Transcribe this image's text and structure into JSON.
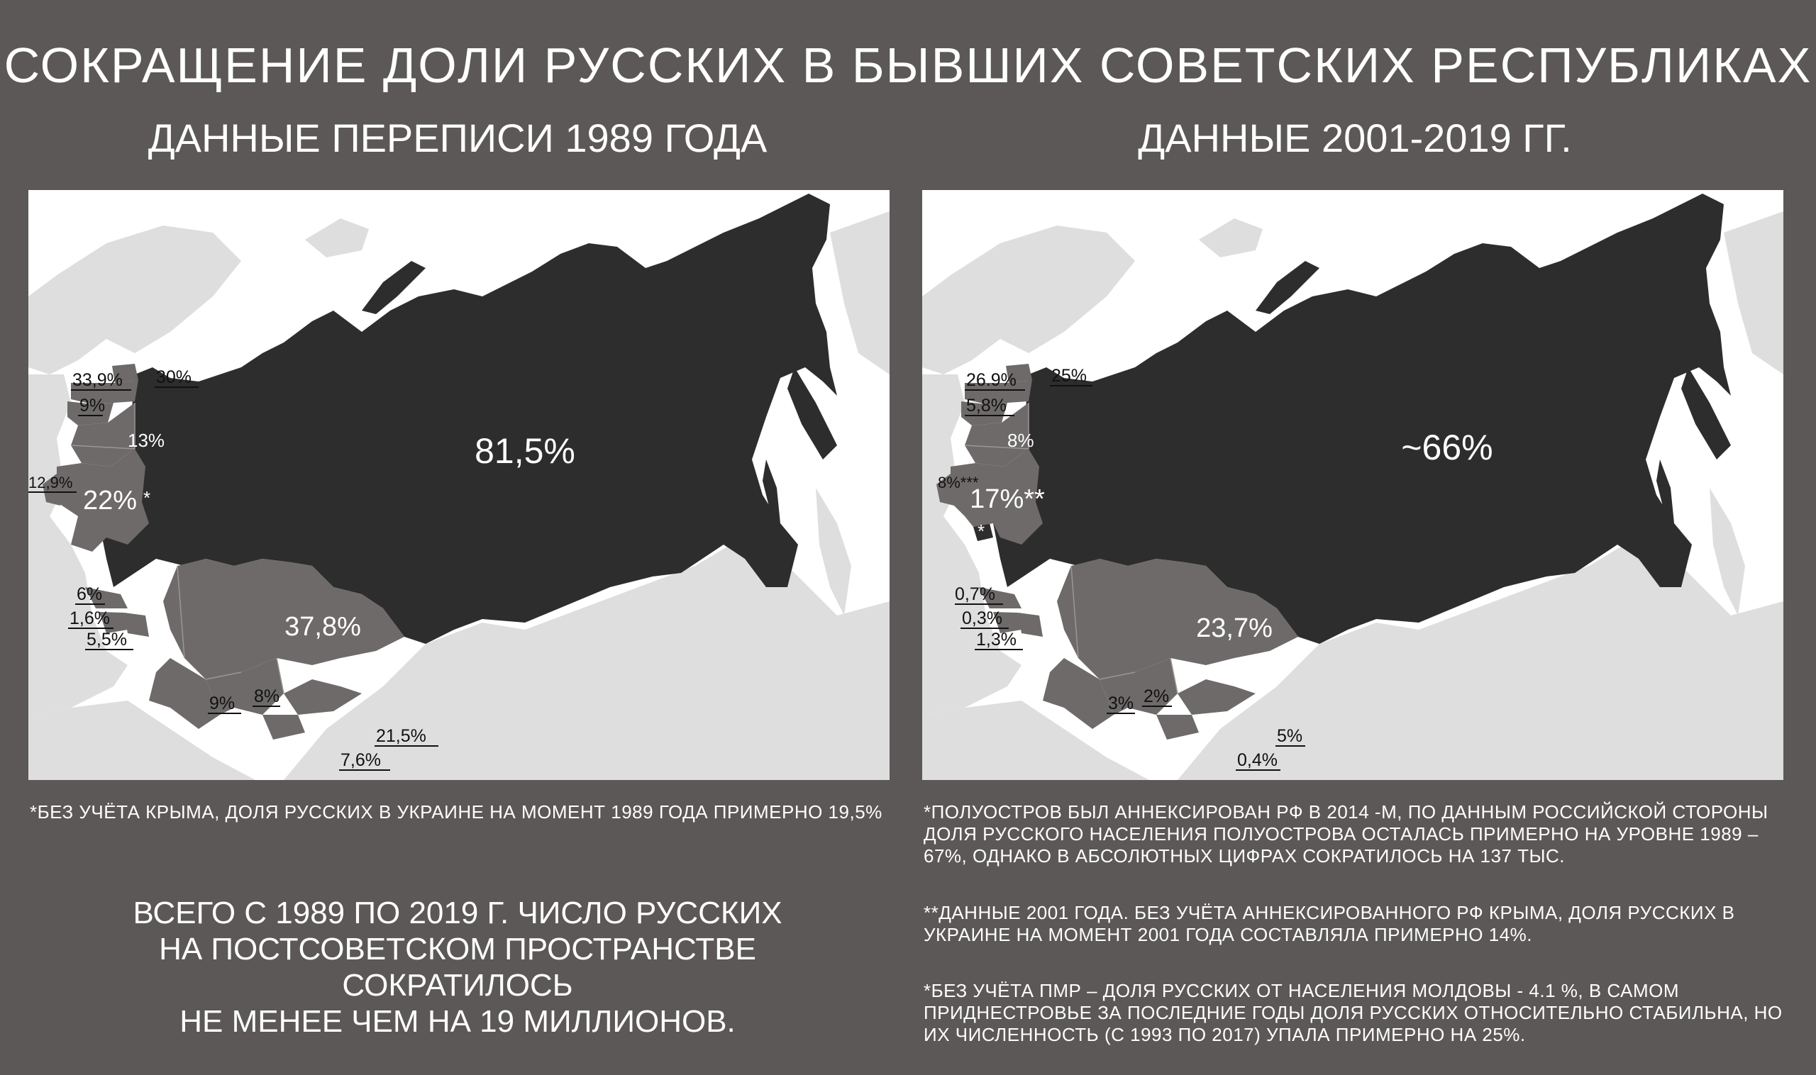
{
  "title": "СОКРАЩЕНИЕ ДОЛИ РУССКИХ В БЫВШИХ СОВЕТСКИХ РЕСПУБЛИКАХ",
  "left_map": {
    "subtitle": "ДАННЫЕ ПЕРЕПИСИ 1989 ГОДА",
    "labels": {
      "russia": "81,5%",
      "kazakhstan": "37,8%",
      "ukraine": "22%",
      "ukraine_mark": "*",
      "belarus": "13%",
      "estonia": "30%",
      "latvia": "33,9%",
      "lithuania": "9%",
      "moldova": "12,9%",
      "georgia": "6%",
      "armenia": "1,6%",
      "azerbaijan": "5,5%",
      "turkmenistan": "9%",
      "uzbekistan": "8%",
      "kyrgyzstan": "21,5%",
      "tajikistan": "7,6%"
    }
  },
  "right_map": {
    "subtitle": "ДАННЫЕ 2001-2019 ГГ.",
    "labels": {
      "russia": "~66%",
      "kazakhstan": "23,7%",
      "ukraine": "17%**",
      "crimea_mark": "*",
      "belarus": "8%",
      "estonia": "25%",
      "latvia": "26.9%",
      "lithuania": "5,8%",
      "moldova": "8%***",
      "georgia": "0,7%",
      "armenia": "0,3%",
      "azerbaijan": "1,3%",
      "turkmenistan": "3%",
      "uzbekistan": "2%",
      "kyrgyzstan": "5%",
      "tajikistan": "0,4%"
    }
  },
  "notes": {
    "left": "*БЕЗ УЧЁТА КРЫМА, ДОЛЯ РУССКИХ В УКРАИНЕ НА МОМЕНТ 1989 ГОДА ПРИМЕРНО 19,5%",
    "right1": "*ПОЛУОСТРОВ БЫЛ АННЕКСИРОВАН РФ В 2014 -М, ПО ДАННЫМ РОССИЙСКОЙ СТОРОНЫ ДОЛЯ РУССКОГО НАСЕЛЕНИЯ ПОЛУОСТРОВА ОСТАЛАСЬ ПРИМЕРНО НА УРОВНЕ 1989 – 67%, ОДНАКО В АБСОЛЮТНЫХ ЦИФРАХ СОКРАТИЛОСЬ НА  137 ТЫС.",
    "right2": "**ДАННЫЕ 2001 ГОДА. БЕЗ УЧЁТА АННЕКСИРОВАННОГО РФ КРЫМА, ДОЛЯ РУССКИХ В УКРАИНЕ НА МОМЕНТ 2001 ГОДА СОСТАВЛЯЛА ПРИМЕРНО 14%.",
    "right3": "*БЕЗ УЧЁТА ПМР – ДОЛЯ РУССКИХ ОТ НАСЕЛЕНИЯ МОЛДОВЫ -  4.1 %, В САМОМ ПРИДНЕСТРОВЬЕ ЗА ПОСЛЕДНИЕ ГОДЫ  ДОЛЯ РУССКИХ ОТНОСИТЕЛЬНО СТАБИЛЬНА, НО ИХ ЧИСЛЕННОСТЬ (С 1993 ПО 2017) УПАЛА ПРИМЕРНО НА 25%."
  },
  "summary": {
    "line1": "ВСЕГО С 1989 ПО 2019 Г. ЧИСЛО РУССКИХ",
    "line2": "НА ПОСТСОВЕТСКОМ ПРОСТРАНСТВЕ",
    "line3": "СОКРАТИЛОСЬ",
    "line4": "НЕ МЕНЕЕ ЧЕМ НА 19 МИЛЛИОНОВ."
  },
  "colors": {
    "background": "#5c5858",
    "russia": "#2e2d2d",
    "ussr_republics": "#6e6a6a",
    "other_land": "#dedede",
    "sea": "#ffffff"
  }
}
